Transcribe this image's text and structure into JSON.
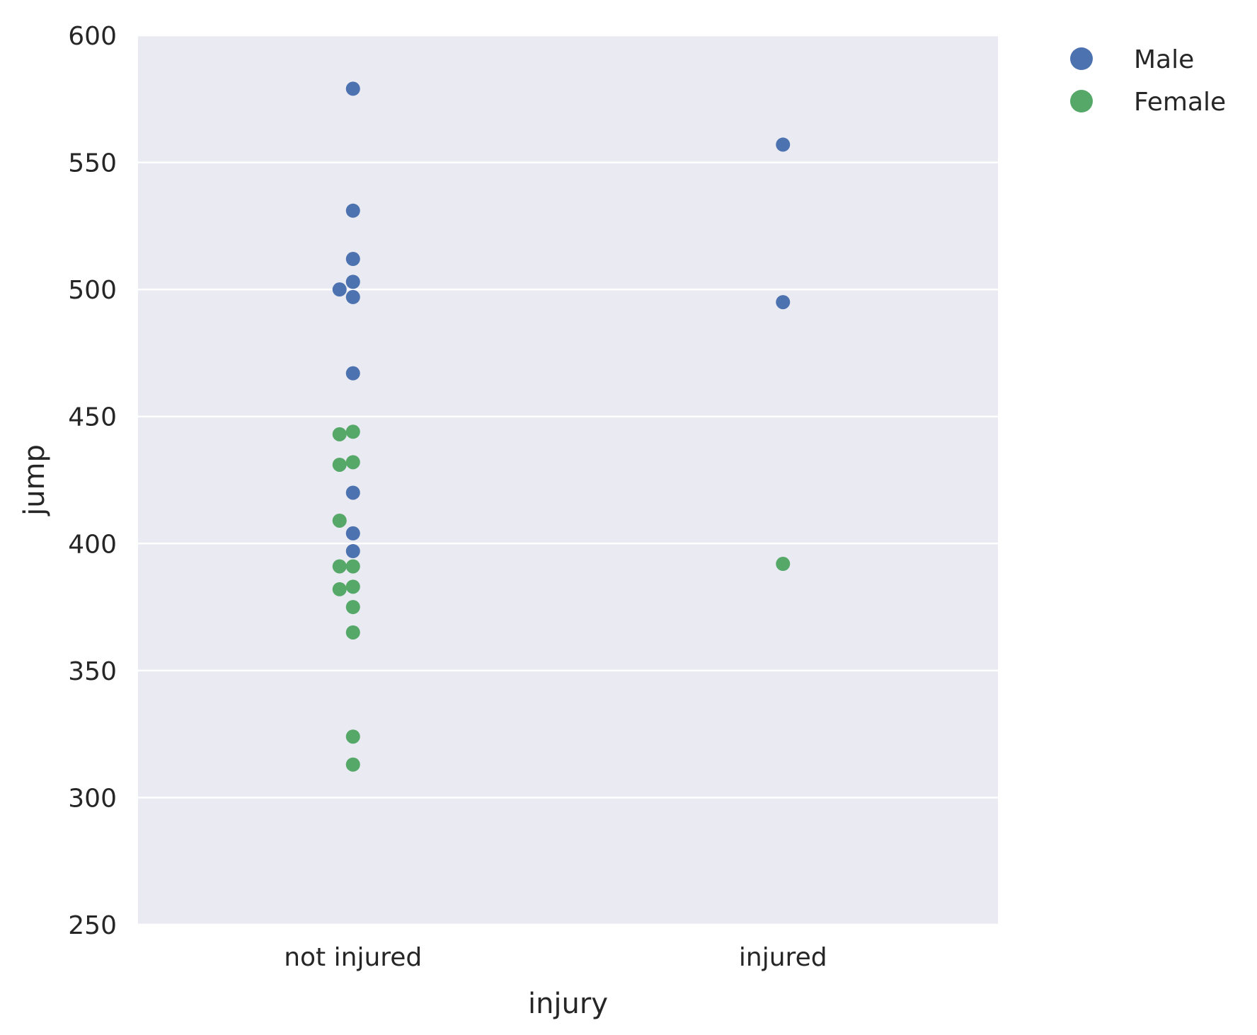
{
  "chart_data": {
    "type": "scatter",
    "subtype": "stripplot",
    "xlabel": "injury",
    "ylabel": "jump",
    "categories": [
      "not injured",
      "injured"
    ],
    "ylim": [
      250,
      600
    ],
    "yticks": [
      250,
      300,
      350,
      400,
      450,
      500,
      550,
      600
    ],
    "grid": true,
    "legend_position": "outside-top-right",
    "series": [
      {
        "name": "Male",
        "color": "#4c72b0",
        "points": [
          {
            "category": "not injured",
            "y": 579
          },
          {
            "category": "not injured",
            "y": 531
          },
          {
            "category": "not injured",
            "y": 512
          },
          {
            "category": "not injured",
            "y": 503
          },
          {
            "category": "not injured",
            "y": 500
          },
          {
            "category": "not injured",
            "y": 497
          },
          {
            "category": "not injured",
            "y": 467
          },
          {
            "category": "not injured",
            "y": 420
          },
          {
            "category": "not injured",
            "y": 404
          },
          {
            "category": "not injured",
            "y": 397
          },
          {
            "category": "injured",
            "y": 557
          },
          {
            "category": "injured",
            "y": 495
          }
        ]
      },
      {
        "name": "Female",
        "color": "#55a868",
        "points": [
          {
            "category": "not injured",
            "y": 444
          },
          {
            "category": "not injured",
            "y": 443
          },
          {
            "category": "not injured",
            "y": 432
          },
          {
            "category": "not injured",
            "y": 431
          },
          {
            "category": "not injured",
            "y": 409
          },
          {
            "category": "not injured",
            "y": 391
          },
          {
            "category": "not injured",
            "y": 391
          },
          {
            "category": "not injured",
            "y": 383
          },
          {
            "category": "not injured",
            "y": 382
          },
          {
            "category": "not injured",
            "y": 375
          },
          {
            "category": "not injured",
            "y": 365
          },
          {
            "category": "not injured",
            "y": 324
          },
          {
            "category": "not injured",
            "y": 313
          },
          {
            "category": "injured",
            "y": 392
          }
        ]
      }
    ]
  },
  "colors": {
    "plot_background": "#eaeaf2",
    "grid": "#ffffff",
    "text": "#262626"
  }
}
